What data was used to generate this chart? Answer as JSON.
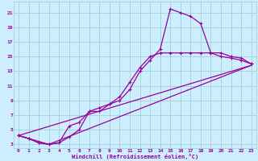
{
  "xlabel": "Windchill (Refroidissement éolien,°C)",
  "bg_color": "#cceeff",
  "grid_color": "#99cccc",
  "line_color": "#990099",
  "xlim": [
    -0.5,
    23.5
  ],
  "ylim": [
    2.5,
    22.5
  ],
  "xticks": [
    0,
    1,
    2,
    3,
    4,
    5,
    6,
    7,
    8,
    9,
    10,
    11,
    12,
    13,
    14,
    15,
    16,
    17,
    18,
    19,
    20,
    21,
    22,
    23
  ],
  "yticks": [
    3,
    5,
    7,
    9,
    11,
    13,
    15,
    17,
    19,
    21
  ],
  "line1_x": [
    0,
    1,
    2,
    3,
    4,
    5,
    6,
    7,
    8,
    9,
    10,
    11,
    12,
    13,
    14,
    15,
    16,
    17,
    18,
    19,
    20,
    21,
    22,
    23
  ],
  "line1_y": [
    4.2,
    3.8,
    3.2,
    3.0,
    3.2,
    5.5,
    6.0,
    7.5,
    7.5,
    8.5,
    9.0,
    10.5,
    13.0,
    14.5,
    16.0,
    21.5,
    21.0,
    20.5,
    19.5,
    15.5,
    15.5,
    15.0,
    14.8,
    14.0
  ],
  "line2_x": [
    0,
    1,
    2,
    3,
    4,
    5,
    6,
    7,
    8,
    9,
    10,
    11,
    12,
    13,
    14,
    15,
    16,
    17,
    18,
    19,
    20,
    21,
    22,
    23
  ],
  "line2_y": [
    4.2,
    3.8,
    3.2,
    3.0,
    3.2,
    4.0,
    5.0,
    7.5,
    8.0,
    8.5,
    9.5,
    11.5,
    13.5,
    15.0,
    15.5,
    15.5,
    15.5,
    15.5,
    15.5,
    15.5,
    15.0,
    14.8,
    14.5,
    14.0
  ],
  "line3_x": [
    0,
    23
  ],
  "line3_y": [
    4.2,
    13.8
  ],
  "line4_x": [
    0,
    3,
    23
  ],
  "line4_y": [
    4.2,
    3.0,
    13.8
  ]
}
